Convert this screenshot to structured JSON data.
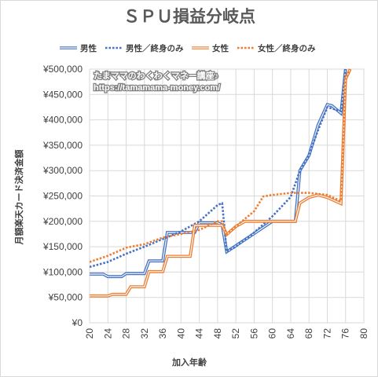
{
  "chart_data": {
    "type": "line",
    "title": "ＳＰＵ損益分岐点",
    "xlabel": "加入年齢",
    "ylabel": "月額楽天カード決済金額",
    "xlim": [
      20,
      80
    ],
    "ylim": [
      0,
      500000
    ],
    "x_ticks": [
      "20",
      "24",
      "28",
      "32",
      "36",
      "40",
      "44",
      "48",
      "52",
      "56",
      "60",
      "64",
      "68",
      "72",
      "76",
      "80"
    ],
    "y_ticks": [
      "¥0",
      "¥50,000",
      "¥100,000",
      "¥150,000",
      "¥200,000",
      "¥250,000",
      "¥300,000",
      "¥350,000",
      "¥400,000",
      "¥450,000",
      "¥500,000"
    ],
    "grid": true,
    "legend_position": "top",
    "annotations": [
      "たまママのわくわくマネー講座♪",
      "https://tamamama-money.com/"
    ],
    "series": [
      {
        "name": "男性",
        "color": "#4472c4",
        "style": "double",
        "points": [
          [
            20,
            96000
          ],
          [
            23,
            96000
          ],
          [
            24,
            91000
          ],
          [
            27,
            91000
          ],
          [
            28,
            97000
          ],
          [
            32,
            97000
          ],
          [
            33,
            122000
          ],
          [
            36,
            122000
          ],
          [
            37,
            178000
          ],
          [
            43,
            178000
          ],
          [
            44,
            197000
          ],
          [
            48,
            197000
          ],
          [
            49,
            193000
          ],
          [
            50,
            140000
          ],
          [
            55,
            170000
          ],
          [
            60,
            200000
          ],
          [
            62,
            200000
          ],
          [
            65,
            200000
          ],
          [
            66,
            300000
          ],
          [
            68,
            330000
          ],
          [
            70,
            390000
          ],
          [
            72,
            430000
          ],
          [
            73,
            428000
          ],
          [
            75,
            413000
          ],
          [
            76,
            500000
          ]
        ]
      },
      {
        "name": "男性／終身のみ",
        "color": "#4472c4",
        "style": "dotted",
        "points": [
          [
            20,
            110000
          ],
          [
            24,
            120000
          ],
          [
            28,
            136000
          ],
          [
            32,
            150000
          ],
          [
            36,
            165000
          ],
          [
            40,
            180000
          ],
          [
            44,
            200000
          ],
          [
            48,
            232000
          ],
          [
            49,
            236000
          ],
          [
            50,
            140000
          ],
          [
            52,
            150000
          ],
          [
            56,
            178000
          ],
          [
            60,
            210000
          ],
          [
            64,
            248000
          ],
          [
            66,
            300000
          ],
          [
            68,
            330000
          ],
          [
            70,
            380000
          ],
          [
            72,
            425000
          ],
          [
            75,
            417000
          ],
          [
            76,
            500000
          ]
        ]
      },
      {
        "name": "女性",
        "color": "#ed7d31",
        "style": "double",
        "points": [
          [
            20,
            53000
          ],
          [
            24,
            53000
          ],
          [
            25,
            56000
          ],
          [
            28,
            56000
          ],
          [
            29,
            71000
          ],
          [
            32,
            71000
          ],
          [
            33,
            101000
          ],
          [
            36,
            101000
          ],
          [
            37,
            131000
          ],
          [
            41,
            131000
          ],
          [
            42,
            131000
          ],
          [
            43,
            192000
          ],
          [
            48,
            192000
          ],
          [
            49,
            192000
          ],
          [
            50,
            174000
          ],
          [
            52,
            190000
          ],
          [
            54,
            200000
          ],
          [
            60,
            200000
          ],
          [
            65,
            200000
          ],
          [
            66,
            236000
          ],
          [
            68,
            247000
          ],
          [
            70,
            252000
          ],
          [
            72,
            247000
          ],
          [
            75,
            235000
          ],
          [
            76,
            480000
          ],
          [
            77,
            500000
          ]
        ]
      },
      {
        "name": "女性／終身のみ",
        "color": "#ed7d31",
        "style": "dotted",
        "points": [
          [
            20,
            120000
          ],
          [
            24,
            132000
          ],
          [
            28,
            148000
          ],
          [
            32,
            155000
          ],
          [
            36,
            168000
          ],
          [
            40,
            175000
          ],
          [
            44,
            183000
          ],
          [
            48,
            200000
          ],
          [
            49,
            200000
          ],
          [
            50,
            175000
          ],
          [
            52,
            190000
          ],
          [
            56,
            220000
          ],
          [
            58,
            249000
          ],
          [
            60,
            252000
          ],
          [
            64,
            256000
          ],
          [
            68,
            256000
          ],
          [
            72,
            252000
          ],
          [
            75,
            240000
          ],
          [
            76,
            480000
          ],
          [
            77,
            500000
          ]
        ]
      }
    ]
  }
}
